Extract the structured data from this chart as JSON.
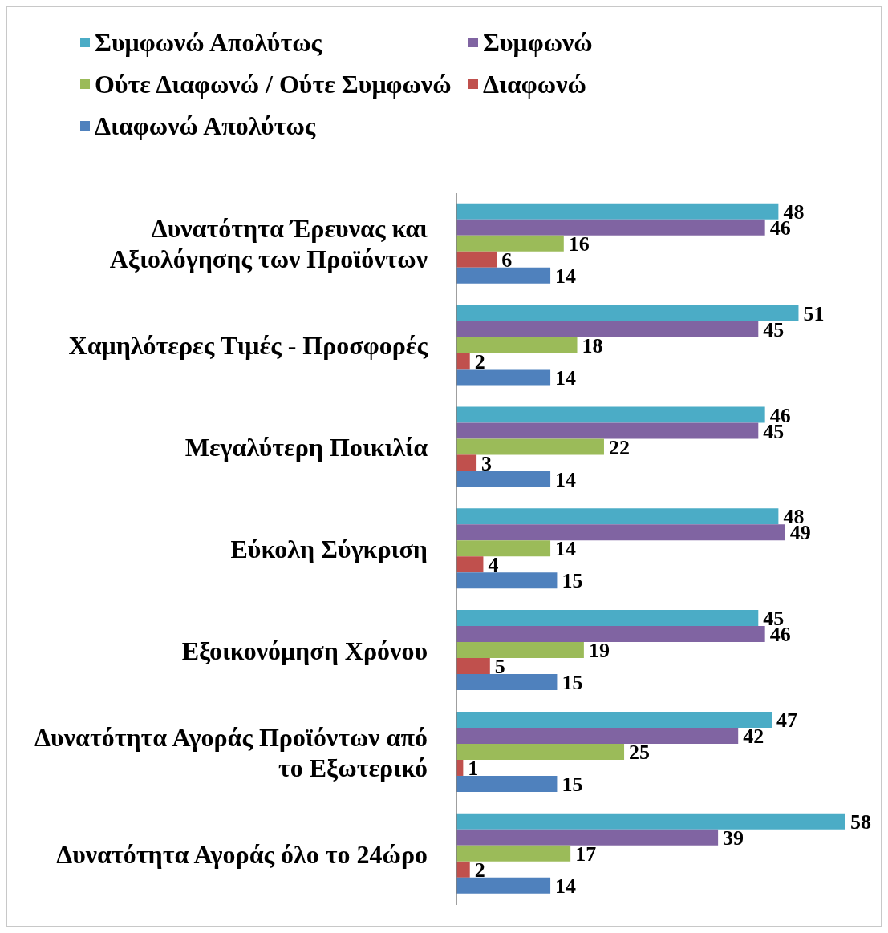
{
  "chart_data": {
    "type": "bar",
    "orientation": "horizontal",
    "categories": [
      "Δυνατότητα Έρευνας και Αξιολόγησης των Προϊόντων",
      "Χαμηλότερες Τιμές - Προσφορές",
      "Μεγαλύτερη Ποικιλία",
      "Εύκολη Σύγκριση",
      "Εξοικονόμηση Χρόνου",
      "Δυνατότητα Αγοράς Προϊόντων από το Εξωτερικό",
      "Δυνατότητα Αγοράς όλο το 24ώρο"
    ],
    "series": [
      {
        "name": "Συμφωνώ Απολύτως",
        "color": "#4bacc6",
        "values": [
          48,
          51,
          46,
          48,
          45,
          47,
          58
        ]
      },
      {
        "name": "Συμφωνώ",
        "color": "#8064a2",
        "values": [
          46,
          45,
          45,
          49,
          46,
          42,
          39
        ]
      },
      {
        "name": "Ούτε Διαφωνώ / Ούτε Συμφωνώ",
        "color": "#9bbb59",
        "values": [
          16,
          18,
          22,
          14,
          19,
          25,
          17
        ]
      },
      {
        "name": "Διαφωνώ",
        "color": "#c0504d",
        "values": [
          6,
          2,
          3,
          4,
          5,
          1,
          2
        ]
      },
      {
        "name": "Διαφωνώ Απολύτως",
        "color": "#4f81bd",
        "values": [
          14,
          14,
          14,
          15,
          15,
          15,
          14
        ]
      }
    ],
    "data_labels": true,
    "legend": "top",
    "tick_labels": "y"
  }
}
